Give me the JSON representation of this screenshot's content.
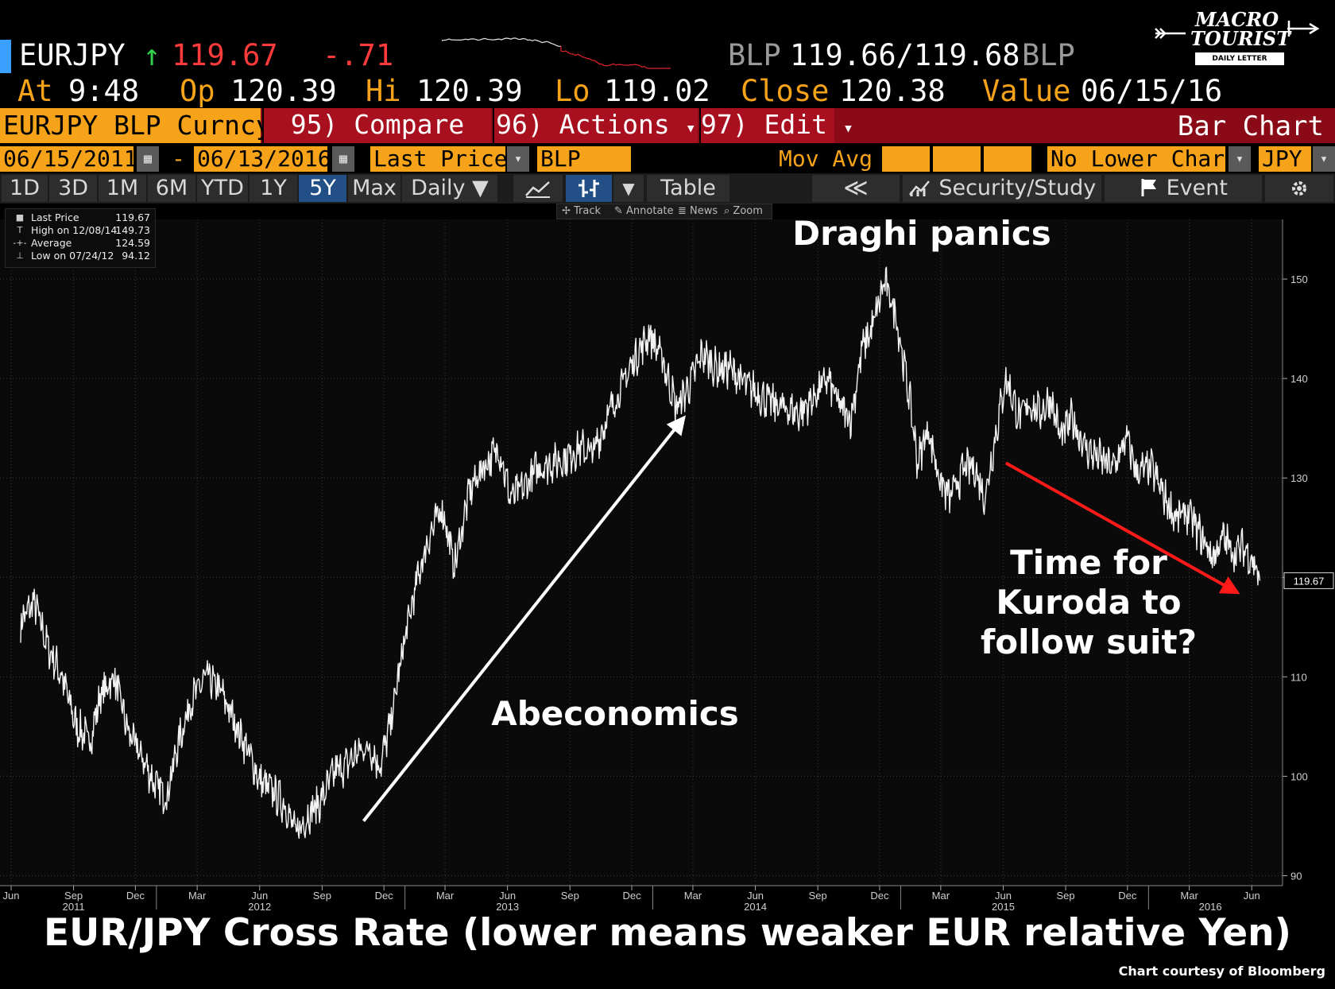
{
  "quote": {
    "ticker": "EURJPY",
    "arrow": "↑",
    "last": "119.67",
    "change": "-.71",
    "bid_src": "BLP",
    "bid_ask": "119.66/119.68",
    "ask_src": "BLP",
    "at_label": "At",
    "at_value": "9:48",
    "op_label": "Op",
    "op_value": "120.39",
    "hi_label": "Hi",
    "hi_value": "120.39",
    "lo_label": "Lo",
    "lo_value": "119.02",
    "close_label": "Close",
    "close_value": "120.38",
    "value_label": "Value",
    "value_date": "06/15/16"
  },
  "logo": {
    "line1": "MACRO",
    "line2": "TOURIST",
    "tagline": "DAILY LETTER"
  },
  "toolbar": {
    "security": "EURJPY BLP Curncy",
    "compare": "95) Compare",
    "actions": "96) Actions",
    "edit": "97) Edit",
    "view": "Bar Chart",
    "dropdown_glyph": "▾"
  },
  "options": {
    "start_date": "06/15/2011",
    "dash": "-",
    "end_date": "06/13/2016",
    "field": "Last Price",
    "source": "BLP",
    "mov_avg": "Mov Avg",
    "lower_chart": "No Lower Chart",
    "currency": "JPY",
    "calendar_glyph": "▦",
    "down_glyph": "▾"
  },
  "periods": {
    "buttons": [
      "1D",
      "3D",
      "1M",
      "6M",
      "YTD",
      "1Y",
      "5Y",
      "Max"
    ],
    "selected": "5Y",
    "frequency": "Daily ▼",
    "table": "Table",
    "collapse": "≪",
    "security_study": "Security/Study",
    "event": "Event"
  },
  "subtools": {
    "track": "Track",
    "annotate": "Annotate",
    "news": "News",
    "zoom": "Zoom"
  },
  "legend": [
    {
      "icon": "■",
      "label": "Last Price",
      "value": "119.67"
    },
    {
      "icon": "T",
      "label": "High on 12/08/14",
      "value": "149.73"
    },
    {
      "icon": "-+-",
      "label": "Average",
      "value": "124.59"
    },
    {
      "icon": "⊥",
      "label": "Low on 07/24/12",
      "value": "94.12"
    }
  ],
  "chart_data": {
    "type": "line",
    "title": "EUR/JPY Cross Rate (lower means weaker EUR relative Yen)",
    "series": [
      {
        "name": "Last Price",
        "x": [
          "2011-06-15",
          "2011-07-05",
          "2011-07-25",
          "2011-08-15",
          "2011-09-05",
          "2011-09-25",
          "2011-10-10",
          "2011-10-31",
          "2011-11-20",
          "2011-12-10",
          "2011-12-31",
          "2012-01-16",
          "2012-02-01",
          "2012-02-20",
          "2012-03-15",
          "2012-04-05",
          "2012-04-25",
          "2012-05-15",
          "2012-06-01",
          "2012-06-20",
          "2012-07-10",
          "2012-07-24",
          "2012-08-10",
          "2012-08-30",
          "2012-09-20",
          "2012-10-05",
          "2012-10-25",
          "2012-11-10",
          "2012-11-25",
          "2012-12-10",
          "2012-12-31",
          "2013-01-20",
          "2013-02-05",
          "2013-02-25",
          "2013-03-15",
          "2013-04-05",
          "2013-04-25",
          "2013-05-20",
          "2013-06-05",
          "2013-06-25",
          "2013-07-15",
          "2013-08-05",
          "2013-08-25",
          "2013-09-15",
          "2013-10-05",
          "2013-10-25",
          "2013-11-15",
          "2013-12-05",
          "2013-12-27",
          "2014-01-15",
          "2014-02-05",
          "2014-02-25",
          "2014-03-15",
          "2014-04-05",
          "2014-04-25",
          "2014-05-15",
          "2014-06-05",
          "2014-06-25",
          "2014-07-15",
          "2014-08-05",
          "2014-08-25",
          "2014-09-15",
          "2014-10-05",
          "2014-10-20",
          "2014-11-05",
          "2014-11-20",
          "2014-12-08",
          "2014-12-25",
          "2015-01-15",
          "2015-01-26",
          "2015-02-10",
          "2015-03-01",
          "2015-03-15",
          "2015-04-05",
          "2015-04-20",
          "2015-05-05",
          "2015-05-25",
          "2015-06-05",
          "2015-06-25",
          "2015-07-10",
          "2015-07-25",
          "2015-08-10",
          "2015-08-25",
          "2015-09-10",
          "2015-09-30",
          "2015-10-20",
          "2015-11-10",
          "2015-11-30",
          "2015-12-15",
          "2016-01-05",
          "2016-01-25",
          "2016-02-10",
          "2016-02-29",
          "2016-03-15",
          "2016-04-05",
          "2016-04-20",
          "2016-05-05",
          "2016-05-20",
          "2016-06-05",
          "2016-06-13"
        ],
        "y": [
          115.5,
          117.5,
          113.0,
          110.0,
          105.0,
          103.5,
          108.0,
          110.0,
          104.5,
          102.0,
          99.0,
          98.0,
          103.0,
          107.5,
          110.0,
          108.5,
          105.5,
          102.5,
          99.5,
          98.5,
          97.0,
          94.2,
          96.0,
          97.5,
          100.5,
          101.0,
          102.5,
          103.0,
          101.0,
          105.0,
          113.5,
          120.0,
          124.0,
          127.0,
          121.0,
          128.5,
          131.0,
          133.0,
          128.0,
          129.0,
          131.0,
          131.5,
          132.0,
          133.0,
          132.5,
          136.0,
          139.0,
          142.0,
          144.5,
          142.0,
          137.0,
          139.5,
          142.5,
          141.0,
          141.0,
          139.5,
          138.5,
          137.5,
          137.0,
          136.5,
          138.0,
          140.0,
          137.0,
          136.0,
          143.0,
          145.0,
          149.7,
          146.5,
          137.5,
          131.5,
          135.0,
          129.5,
          128.0,
          131.0,
          131.0,
          128.0,
          136.0,
          140.0,
          136.0,
          137.5,
          136.5,
          138.0,
          134.0,
          136.0,
          133.0,
          132.0,
          131.0,
          134.0,
          130.5,
          131.0,
          128.0,
          126.0,
          126.5,
          124.5,
          122.0,
          124.0,
          122.5,
          123.0,
          121.5,
          119.67
        ]
      }
    ],
    "y_ticks": [
      150,
      140,
      130,
      120,
      110,
      100,
      90
    ],
    "ylim": [
      89,
      156
    ],
    "x_ticks": [
      {
        "date": "2011-06-01",
        "label": "Jun"
      },
      {
        "date": "2011-09-01",
        "label": "Sep"
      },
      {
        "date": "2011-12-01",
        "label": "Dec"
      },
      {
        "date": "2012-03-01",
        "label": "Mar"
      },
      {
        "date": "2012-06-01",
        "label": "Jun"
      },
      {
        "date": "2012-09-01",
        "label": "Sep"
      },
      {
        "date": "2012-12-01",
        "label": "Dec"
      },
      {
        "date": "2013-03-01",
        "label": "Mar"
      },
      {
        "date": "2013-06-01",
        "label": "Jun"
      },
      {
        "date": "2013-09-01",
        "label": "Sep"
      },
      {
        "date": "2013-12-01",
        "label": "Dec"
      },
      {
        "date": "2014-03-01",
        "label": "Mar"
      },
      {
        "date": "2014-06-01",
        "label": "Jun"
      },
      {
        "date": "2014-09-01",
        "label": "Sep"
      },
      {
        "date": "2014-12-01",
        "label": "Dec"
      },
      {
        "date": "2015-03-01",
        "label": "Mar"
      },
      {
        "date": "2015-06-01",
        "label": "Jun"
      },
      {
        "date": "2015-09-01",
        "label": "Sep"
      },
      {
        "date": "2015-12-01",
        "label": "Dec"
      },
      {
        "date": "2016-03-01",
        "label": "Mar"
      },
      {
        "date": "2016-06-01",
        "label": "Jun"
      }
    ],
    "year_labels": [
      {
        "date": "2011-09-01",
        "label": "2011"
      },
      {
        "date": "2012-06-01",
        "label": "2012"
      },
      {
        "date": "2013-06-01",
        "label": "2013"
      },
      {
        "date": "2014-06-01",
        "label": "2014"
      },
      {
        "date": "2015-06-01",
        "label": "2015"
      },
      {
        "date": "2016-04-01",
        "label": "2016"
      }
    ],
    "last_value_label": "119.67",
    "grid": true,
    "annotations": [
      {
        "id": "draghi",
        "lines": [
          "Draghi panics"
        ]
      },
      {
        "id": "abe",
        "lines": [
          "Abeconomics"
        ]
      },
      {
        "id": "kuroda",
        "lines": [
          "Time for",
          "Kuroda to",
          "follow suit?"
        ]
      }
    ],
    "arrows": [
      {
        "id": "abe-arrow",
        "color": "#ffffff",
        "from": {
          "date": "2012-11-01",
          "value": 95.5
        },
        "to": {
          "date": "2014-02-15",
          "value": 136.0
        }
      },
      {
        "id": "kuroda-arrow",
        "color": "#ff1a1a",
        "from": {
          "date": "2015-06-05",
          "value": 131.5
        },
        "to": {
          "date": "2016-05-10",
          "value": 118.5
        }
      }
    ]
  },
  "footer": {
    "credit": "Chart courtesy of Bloomberg"
  },
  "colors": {
    "orange": "#f7a31a",
    "red": "#ff3b3b",
    "green": "#2fd14a",
    "accent_blue": "#3aa0ff"
  }
}
